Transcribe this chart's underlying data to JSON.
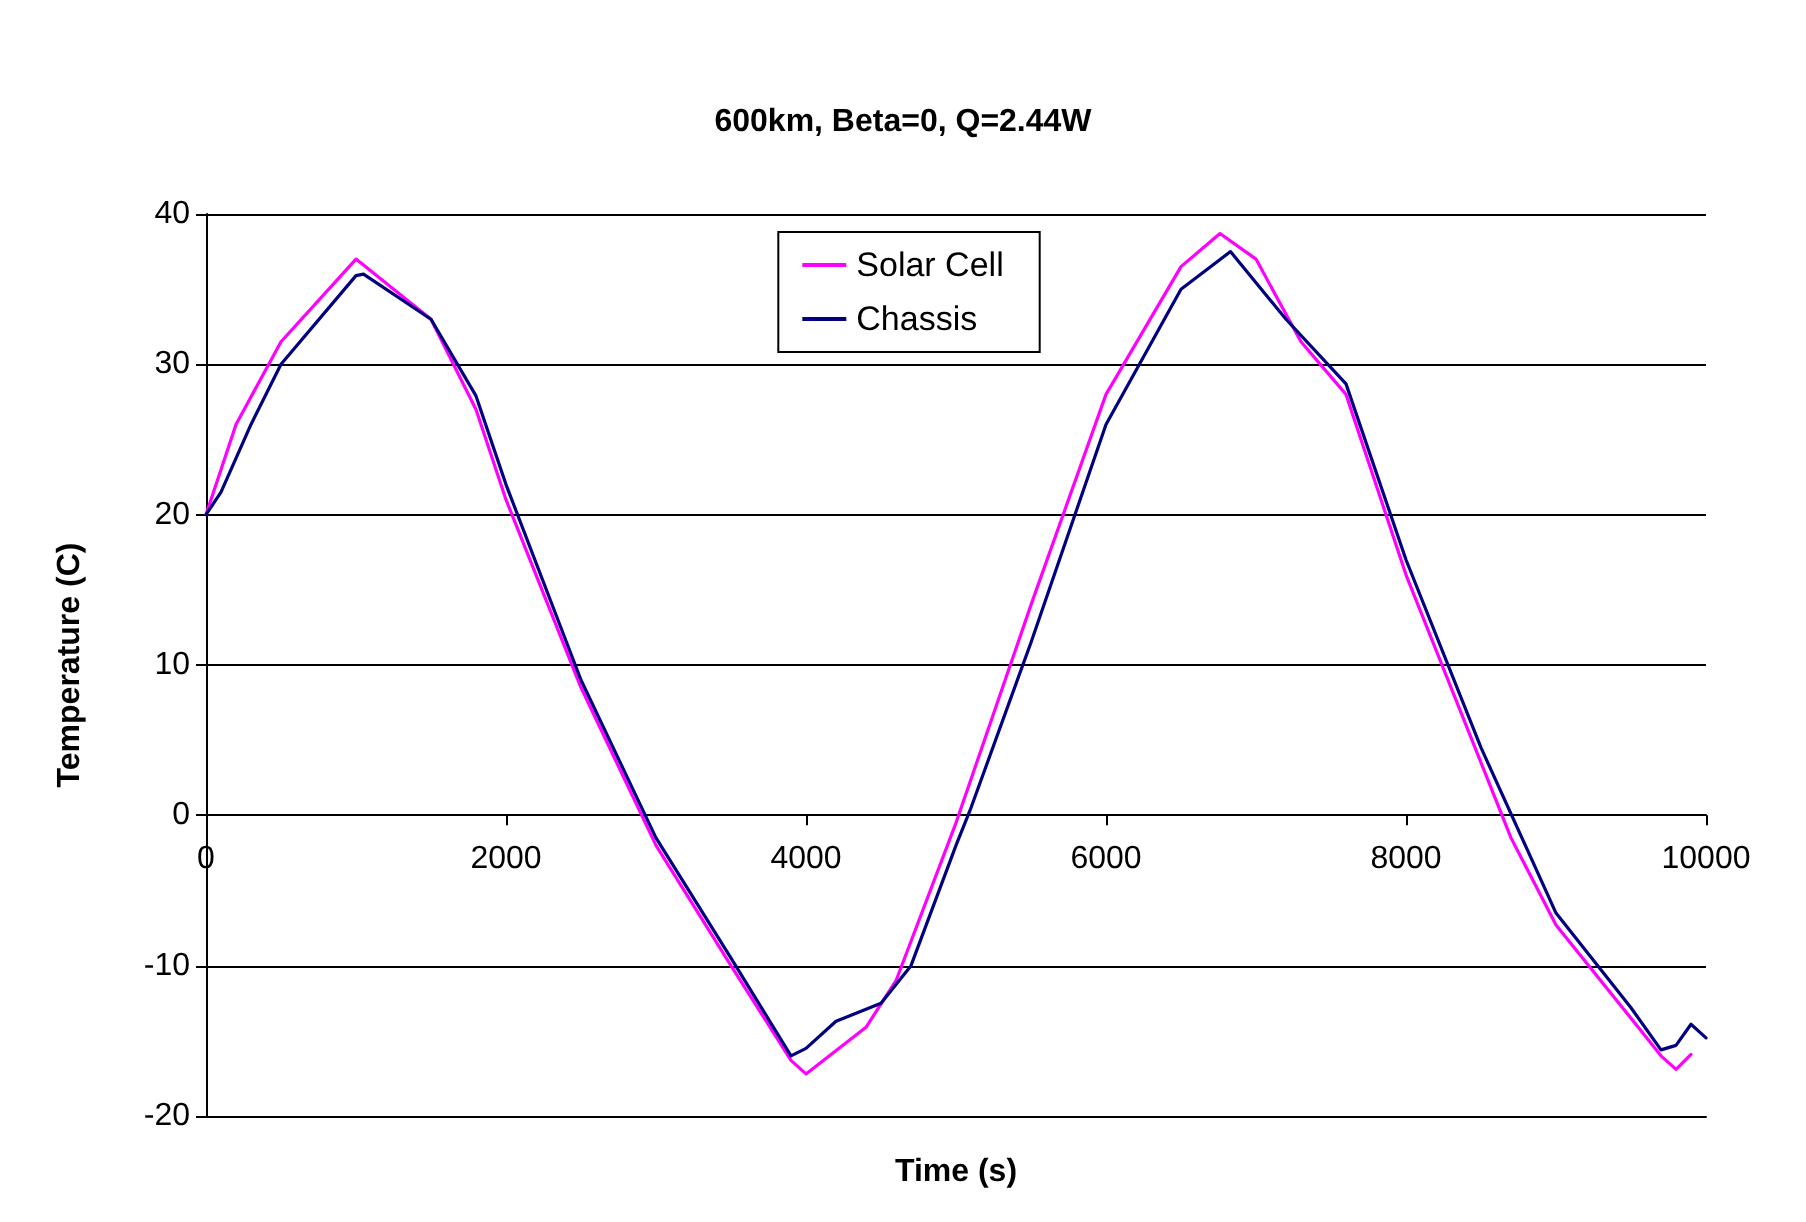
{
  "chart_data": {
    "type": "line",
    "title": "600km, Beta=0, Q=2.44W",
    "xlabel": "Time (s)",
    "ylabel": "Temperature (C)",
    "xlim": [
      0,
      10000
    ],
    "xticks": [
      0,
      2000,
      4000,
      6000,
      8000,
      10000
    ],
    "ylim": [
      -20,
      40
    ],
    "yticks": [
      -20,
      -10,
      0,
      10,
      20,
      30,
      40
    ],
    "grid": "y",
    "legend": "top",
    "marker": "none",
    "line_style": "solid",
    "series": [
      {
        "name": "Solar Cell",
        "color": "#ff00ff",
        "x": [
          0,
          200,
          500,
          1000,
          1500,
          1800,
          2000,
          2500,
          3000,
          3500,
          3900,
          4000,
          4400,
          4600,
          5000,
          5500,
          6000,
          6500,
          6760,
          7000,
          7300,
          7600,
          8000,
          8500,
          8700,
          9000,
          9500,
          9700,
          9800,
          9900
        ],
        "values": [
          20,
          26,
          31.5,
          37,
          33,
          27,
          21,
          8.5,
          -2,
          -10,
          -16.3,
          -17.2,
          -14.1,
          -11,
          -0.5,
          14,
          28,
          36.5,
          38.7,
          37,
          31.5,
          28,
          16,
          3.5,
          -1.5,
          -7.3,
          -13.5,
          -16,
          -16.9,
          -15.9
        ]
      },
      {
        "name": "Chassis",
        "color": "#000080",
        "x": [
          0,
          100,
          300,
          500,
          1000,
          1050,
          1500,
          1800,
          2000,
          2500,
          3000,
          3500,
          3900,
          4000,
          4200,
          4500,
          4700,
          5000,
          5100,
          5500,
          6000,
          6500,
          6830,
          7200,
          7600,
          8000,
          8500,
          9000,
          9500,
          9700,
          9800,
          9900,
          10000
        ],
        "values": [
          20,
          21.5,
          26,
          30,
          35.9,
          36,
          33,
          27.9,
          22,
          9,
          -1.5,
          -9.5,
          -16,
          -15.5,
          -13.7,
          -12.5,
          -10,
          -2,
          0.5,
          11.5,
          26,
          35,
          37.5,
          33,
          28.7,
          17,
          4.5,
          -6.5,
          -12.8,
          -15.6,
          -15.3,
          -13.9,
          -14.8
        ]
      }
    ]
  }
}
